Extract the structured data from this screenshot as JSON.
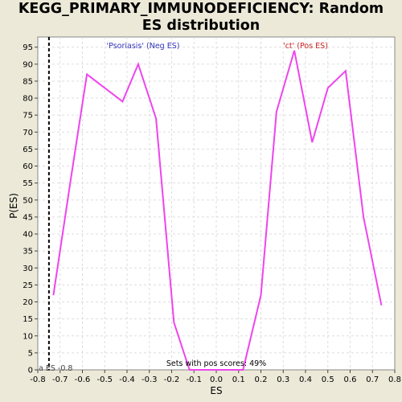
{
  "chart_data": {
    "type": "line",
    "title_line1": "KEGG_PRIMARY_IMMUNODEFICIENCY: Random",
    "title_line2": "ES distribution",
    "xlabel": "ES",
    "ylabel": "P(ES)",
    "xlim": [
      -0.8,
      0.8
    ],
    "ylim": [
      0,
      98
    ],
    "x_ticks": [
      -0.8,
      -0.7,
      -0.6,
      -0.5,
      -0.4,
      -0.3,
      -0.2,
      -0.1,
      0.0,
      0.1,
      0.2,
      0.3,
      0.4,
      0.5,
      0.6,
      0.7,
      0.8
    ],
    "x_tick_labels": [
      "-0.8",
      "-0.7",
      "-0.6",
      "-0.5",
      "-0.4",
      "-0.3",
      "-0.2",
      "-0.1",
      "0.0",
      "0.1",
      "0.2",
      "0.3",
      "0.4",
      "0.5",
      "0.6",
      "0.7",
      "0.8"
    ],
    "y_ticks": [
      0,
      5,
      10,
      15,
      20,
      25,
      30,
      35,
      40,
      45,
      50,
      55,
      60,
      65,
      70,
      75,
      80,
      85,
      90,
      95
    ],
    "y_tick_labels": [
      "0",
      "5",
      "10",
      "15",
      "20",
      "25",
      "30",
      "35",
      "40",
      "45",
      "50",
      "55",
      "60",
      "65",
      "70",
      "75",
      "80",
      "85",
      "90",
      "95"
    ],
    "series": [
      {
        "name": "P(ES)",
        "color": "#ee44ee",
        "x": [
          -0.73,
          -0.65,
          -0.58,
          -0.42,
          -0.35,
          -0.27,
          -0.19,
          -0.12,
          -0.04,
          0.04,
          0.12,
          0.2,
          0.27,
          0.35,
          0.43,
          0.5,
          0.58,
          0.66,
          0.74
        ],
        "y": [
          22,
          57,
          87,
          79,
          90,
          74,
          14,
          0,
          0,
          0,
          0,
          22,
          76,
          94,
          67,
          83,
          88,
          45,
          19
        ]
      }
    ],
    "actual_es": {
      "value": -0.75,
      "label": "a ES -0.8"
    },
    "annotations": {
      "neg_label": "'Psoriasis' (Neg ES)",
      "pos_label": "'ct' (Pos ES)",
      "pos_scores": "Sets with pos scores: 49%"
    },
    "colors": {
      "neg_label": "#3333bb",
      "pos_label": "#cc2222",
      "line": "#ee44ee",
      "grid": "#dddddd"
    }
  }
}
